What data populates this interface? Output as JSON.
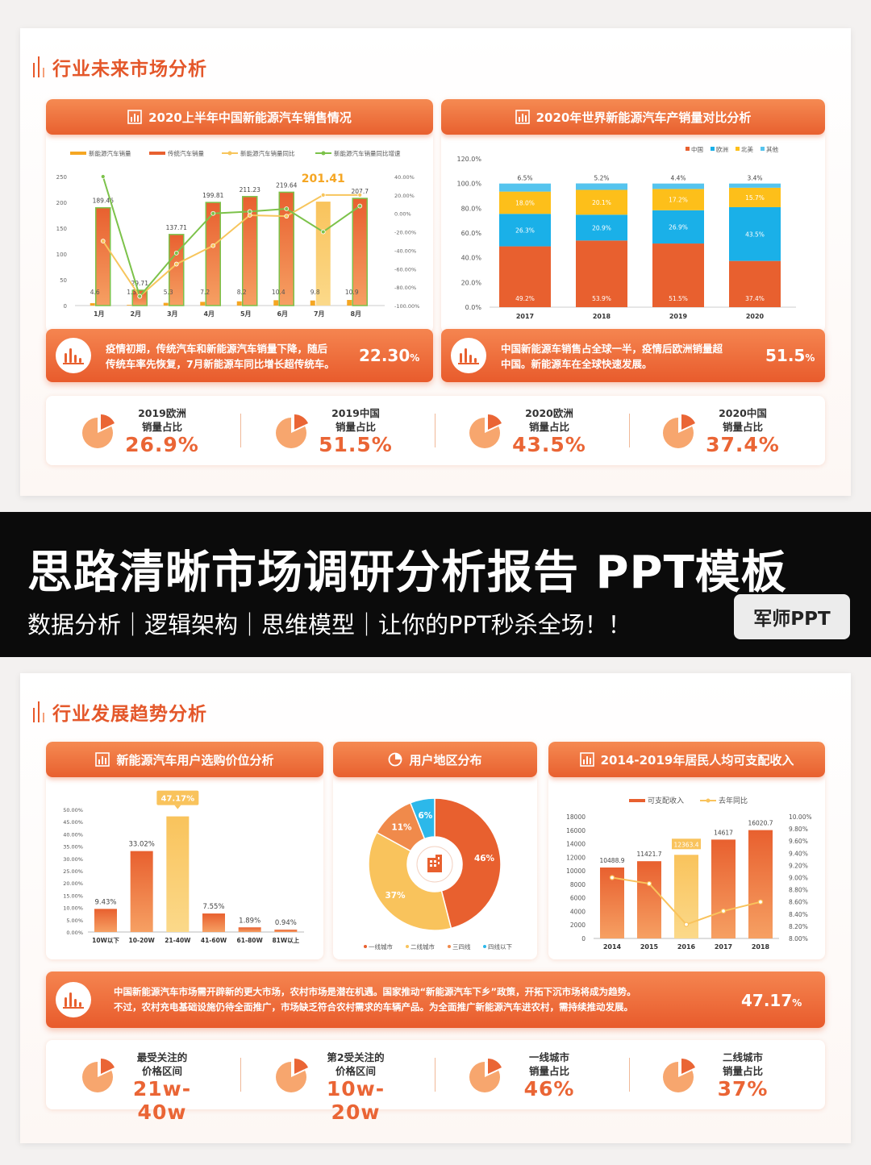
{
  "slide1": {
    "section_title": "行业未来市场分析",
    "panel_left": {
      "title": "2020上半年中国新能源汽车销售情况",
      "icon": "bar-chart-icon"
    },
    "panel_right": {
      "title": "2020年世界新能源汽车产销量对比分析",
      "icon": "bar-chart-icon"
    },
    "banner_left": {
      "text_line1": "疫情初期，传统汽车和新能源汽车销量下降，随后",
      "text_line2": "传统车率先恢复，7月新能源车同比增长超传统车。",
      "value": "22.30",
      "unit": "%"
    },
    "banner_right": {
      "text_line1": "中国新能源车销售占全球一半，疫情后欧洲销量超",
      "text_line2": "中国。新能源车在全球快速发展。",
      "value": "51.5",
      "unit": "%"
    },
    "stats": [
      {
        "label1": "2019欧洲",
        "label2": "销量占比",
        "value": "26.9%"
      },
      {
        "label1": "2019中国",
        "label2": "销量占比",
        "value": "51.5%"
      },
      {
        "label1": "2020欧洲",
        "label2": "销量占比",
        "value": "43.5%"
      },
      {
        "label1": "2020中国",
        "label2": "销量占比",
        "value": "37.4%"
      }
    ]
  },
  "band": {
    "headline": "思路清晰市场调研分析报告 PPT模板",
    "subline": "数据分析｜逻辑架构｜思维模型｜让你的PPT秒杀全场！！",
    "badge": "军师PPT"
  },
  "slide2": {
    "section_title": "行业发展趋势分析",
    "panel_left": {
      "title": "新能源汽车用户选购价位分析",
      "icon": "bar-chart-icon"
    },
    "panel_mid": {
      "title": "用户地区分布",
      "icon": "pie-chart-icon"
    },
    "panel_right": {
      "title": "2014-2019年居民人均可支配收入",
      "icon": "bar-chart-icon"
    },
    "banner": {
      "text_line1": "中国新能源汽车市场需开辟新的更大市场，农村市场是潜在机遇。国家推动“新能源汽车下乡”政策，开拓下沉市场将成为趋势。",
      "text_line2": "不过，农村充电基础设施仍待全面推广，市场缺乏符合农村需求的车辆产品。为全面推广新能源汽车进农村，需持续推动发展。",
      "value": "47.17",
      "unit": "%"
    },
    "stats": [
      {
        "label1": "最受关注的",
        "label2": "价格区间",
        "value": "21w-40w"
      },
      {
        "label1": "第2受关注的",
        "label2": "价格区间",
        "value": "10w-20w"
      },
      {
        "label1": "一线城市",
        "label2": "销量占比",
        "value": "46%"
      },
      {
        "label1": "二线城市",
        "label2": "销量占比",
        "value": "37%"
      }
    ]
  },
  "chart_data": [
    {
      "type": "bar",
      "id": "china-sales-2020h1",
      "categories": [
        "1月",
        "2月",
        "3月",
        "4月",
        "5月",
        "6月",
        "7月",
        "8月"
      ],
      "series": [
        {
          "name": "新能源汽车销量",
          "values": [
            4.6,
            1.3,
            5.3,
            7.2,
            8.2,
            10.4,
            9.8,
            10.9
          ],
          "color": "#f5a623"
        },
        {
          "name": "传统汽车销量",
          "values": [
            189.46,
            29.71,
            137.71,
            199.81,
            211.23,
            219.64,
            201.41,
            207.7
          ],
          "color": "#e8602f"
        },
        {
          "name": "新能源汽车销量同比",
          "values": [
            -30,
            -90,
            -55,
            -35,
            -2,
            -3,
            20,
            20
          ],
          "color": "#f7c55c"
        },
        {
          "name": "新能源汽车销量同比增速",
          "values": [
            40,
            -90,
            -43,
            0,
            2,
            5,
            -20,
            8
          ],
          "color": "#7cc24a"
        }
      ],
      "highlight": {
        "index": 6,
        "label": "201.41"
      },
      "ylim": [
        0,
        250
      ],
      "yticks": [
        0,
        50,
        100,
        150,
        200,
        250
      ],
      "y2lim": [
        -100,
        40
      ],
      "y2ticks": [
        "40.00%",
        "20.00%",
        "0.00%",
        "-20.00%",
        "-40.00%",
        "-60.00%",
        "-80.00%",
        "-100.00%"
      ],
      "legend": "top"
    },
    {
      "type": "bar",
      "stacked": true,
      "id": "world-share",
      "categories": [
        "2017",
        "2018",
        "2019",
        "2020"
      ],
      "series": [
        {
          "name": "中国",
          "values": [
            49.2,
            53.9,
            51.5,
            37.4
          ],
          "color": "#e8602f"
        },
        {
          "name": "欧洲",
          "values": [
            26.3,
            20.9,
            26.9,
            43.5
          ],
          "color": "#1ab0e8"
        },
        {
          "name": "北美",
          "values": [
            18.0,
            20.1,
            17.2,
            15.7
          ],
          "color": "#fdbf1a"
        },
        {
          "name": "其他",
          "values": [
            6.5,
            5.2,
            4.4,
            3.4
          ],
          "color": "#55c4ee"
        }
      ],
      "ylim": [
        0,
        120
      ],
      "yticks": [
        "0.0%",
        "20.0%",
        "40.0%",
        "60.0%",
        "80.0%",
        "100.0%",
        "120.0%"
      ],
      "legend": "top-right"
    },
    {
      "type": "bar",
      "id": "price-range",
      "categories": [
        "10W以下",
        "10-20W",
        "21-40W",
        "41-60W",
        "61-80W",
        "81W以上"
      ],
      "values": [
        9.43,
        33.02,
        47.17,
        7.55,
        1.89,
        0.94
      ],
      "labels": [
        "9.43%",
        "33.02%",
        "47.17%",
        "7.55%",
        "1.89%",
        "0.94%"
      ],
      "highlight_index": 2,
      "ylim": [
        0,
        50
      ],
      "yticks": [
        "0.00%",
        "5.00%",
        "10.00%",
        "15.00%",
        "20.00%",
        "25.00%",
        "30.00%",
        "35.00%",
        "40.00%",
        "45.00%",
        "50.00%"
      ]
    },
    {
      "type": "pie",
      "id": "region-distribution",
      "categories": [
        "一线城市",
        "二线城市",
        "三四线",
        "四线以下"
      ],
      "values": [
        46,
        37,
        11,
        6
      ],
      "labels": [
        "46%",
        "37%",
        "11%",
        "6%"
      ],
      "colors": [
        "#e8602f",
        "#f9c35c",
        "#f08a4b",
        "#2cb8ea"
      ],
      "center_icon": "building-icon",
      "legend": "bottom"
    },
    {
      "type": "bar",
      "id": "disposable-income",
      "categories": [
        "2014",
        "2015",
        "2016",
        "2017",
        "2018"
      ],
      "series": [
        {
          "name": "可支配收入",
          "values": [
            10488.9,
            11421.7,
            12363.4,
            14617,
            16020.7
          ],
          "labels": [
            "10488.9",
            "11421.7",
            "12363.4",
            "14617",
            "16020.7"
          ],
          "color": "#e8602f"
        },
        {
          "name": "去年同比",
          "values": [
            9.0,
            8.9,
            8.23,
            8.45,
            8.6
          ],
          "color": "#f9c35c"
        }
      ],
      "highlight_index": 2,
      "ylim": [
        0,
        18000
      ],
      "yticks": [
        0,
        2000,
        4000,
        6000,
        8000,
        10000,
        12000,
        14000,
        16000,
        18000
      ],
      "y2ticks": [
        "8.00%",
        "8.20%",
        "8.40%",
        "8.60%",
        "8.80%",
        "9.00%",
        "9.20%",
        "9.40%",
        "9.60%",
        "9.80%",
        "10.00%"
      ],
      "y2lim": [
        8.0,
        10.0
      ],
      "legend": "top"
    }
  ],
  "colors": {
    "accent": "#e8602f",
    "accent_light": "#f58a52",
    "yellow": "#f9c35c",
    "band": "#0b0b0b"
  }
}
